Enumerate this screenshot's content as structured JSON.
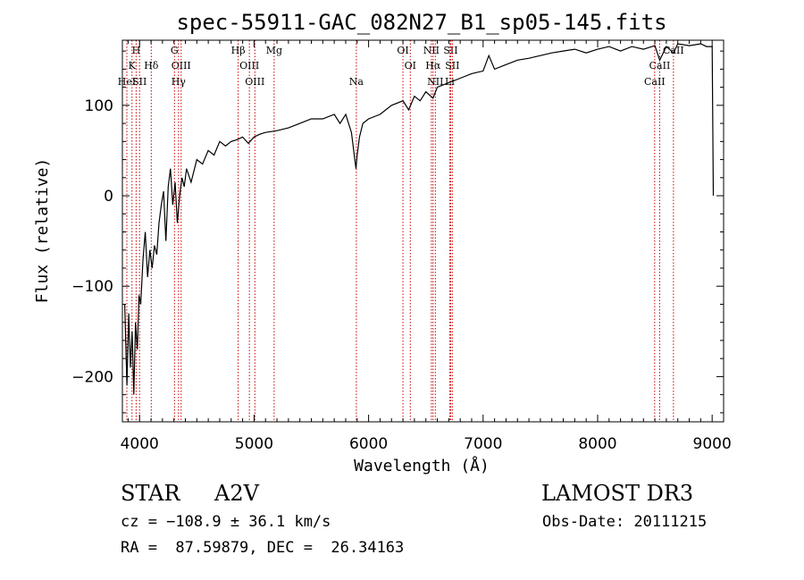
{
  "chart_data": {
    "type": "line",
    "title": "spec-55911-GAC_082N27_B1_sp05-145.fits",
    "xlabel": "Wavelength (Å)",
    "ylabel": "Flux (relative)",
    "xlim": [
      3850,
      9100
    ],
    "ylim": [
      -250,
      172
    ],
    "x_ticks": [
      4000,
      5000,
      6000,
      7000,
      8000,
      9000
    ],
    "y_ticks": [
      -200,
      -100,
      0,
      100
    ],
    "series": [
      {
        "name": "spectrum",
        "x": [
          3870,
          3890,
          3905,
          3920,
          3935,
          3950,
          3965,
          3980,
          3995,
          4010,
          4030,
          4050,
          4070,
          4090,
          4110,
          4130,
          4150,
          4170,
          4190,
          4210,
          4230,
          4250,
          4270,
          4290,
          4310,
          4330,
          4350,
          4370,
          4390,
          4410,
          4450,
          4500,
          4550,
          4600,
          4650,
          4700,
          4750,
          4800,
          4850,
          4900,
          4950,
          5000,
          5050,
          5100,
          5200,
          5300,
          5400,
          5500,
          5600,
          5700,
          5750,
          5800,
          5850,
          5880,
          5890,
          5900,
          5920,
          5950,
          6000,
          6100,
          6200,
          6300,
          6350,
          6400,
          6450,
          6500,
          6562,
          6600,
          6700,
          6800,
          6900,
          7000,
          7050,
          7100,
          7200,
          7300,
          7400,
          7500,
          7600,
          7700,
          7800,
          7900,
          8000,
          8100,
          8200,
          8300,
          8400,
          8500,
          8542,
          8600,
          8662,
          8700,
          8800,
          8900,
          8950,
          9000,
          9010
        ],
        "y": [
          -120,
          -210,
          -130,
          -190,
          -150,
          -220,
          -140,
          -170,
          -110,
          -120,
          -70,
          -40,
          -90,
          -60,
          -80,
          -55,
          -65,
          -30,
          -10,
          5,
          -50,
          10,
          30,
          -10,
          15,
          -30,
          0,
          20,
          10,
          30,
          15,
          40,
          35,
          50,
          45,
          60,
          55,
          60,
          62,
          65,
          58,
          65,
          68,
          70,
          72,
          75,
          80,
          85,
          85,
          90,
          80,
          90,
          70,
          40,
          30,
          45,
          65,
          80,
          85,
          90,
          100,
          105,
          95,
          110,
          105,
          115,
          108,
          120,
          125,
          130,
          135,
          138,
          155,
          140,
          145,
          150,
          152,
          155,
          158,
          160,
          162,
          158,
          162,
          165,
          160,
          165,
          162,
          166,
          150,
          165,
          158,
          168,
          166,
          168,
          165,
          165,
          0
        ]
      }
    ],
    "lines": [
      {
        "label": "H",
        "row": 0,
        "x": 3970
      },
      {
        "label": "K",
        "row": 1,
        "x": 3934
      },
      {
        "label": "HeI",
        "row": 2,
        "x": 3889
      },
      {
        "label": "SII",
        "row": 2,
        "x": 4000
      },
      {
        "label": "Hδ",
        "row": 1,
        "x": 4102
      },
      {
        "label": "G",
        "row": 0,
        "x": 4305
      },
      {
        "label": "OIII",
        "row": 1,
        "x": 4363
      },
      {
        "label": "Hγ",
        "row": 2,
        "x": 4340
      },
      {
        "label": "Hβ",
        "row": 0,
        "x": 4861
      },
      {
        "label": "OIII",
        "row": 1,
        "x": 4959
      },
      {
        "label": "OIII",
        "row": 2,
        "x": 5007
      },
      {
        "label": "Mg",
        "row": 0,
        "x": 5175
      },
      {
        "label": "Na",
        "row": 2,
        "x": 5893
      },
      {
        "label": "OI",
        "row": 0,
        "x": 6300
      },
      {
        "label": "OI",
        "row": 1,
        "x": 6364
      },
      {
        "label": "NII",
        "row": 0,
        "x": 6548
      },
      {
        "label": "SII",
        "row": 0,
        "x": 6717
      },
      {
        "label": "Hα",
        "row": 1,
        "x": 6563
      },
      {
        "label": "SII",
        "row": 1,
        "x": 6731
      },
      {
        "label": "NII",
        "row": 2,
        "x": 6583
      },
      {
        "label": "Li",
        "row": 2,
        "x": 6708
      },
      {
        "label": "CaII",
        "row": 0,
        "x": 8662
      },
      {
        "label": "CaII",
        "row": 1,
        "x": 8542
      },
      {
        "label": "CaII",
        "row": 2,
        "x": 8498
      }
    ]
  },
  "info": {
    "object_type": "STAR",
    "subclass": "A2V",
    "survey": "LAMOST DR3",
    "cz": "cz = −108.9 ± 36.1 km/s",
    "obs_date": "Obs-Date: 20111215",
    "coords": "RA =  87.59879, DEC =  26.34163"
  },
  "colors": {
    "spectrum": "#000000",
    "line_marker": "#cc0000",
    "axis": "#000000"
  }
}
